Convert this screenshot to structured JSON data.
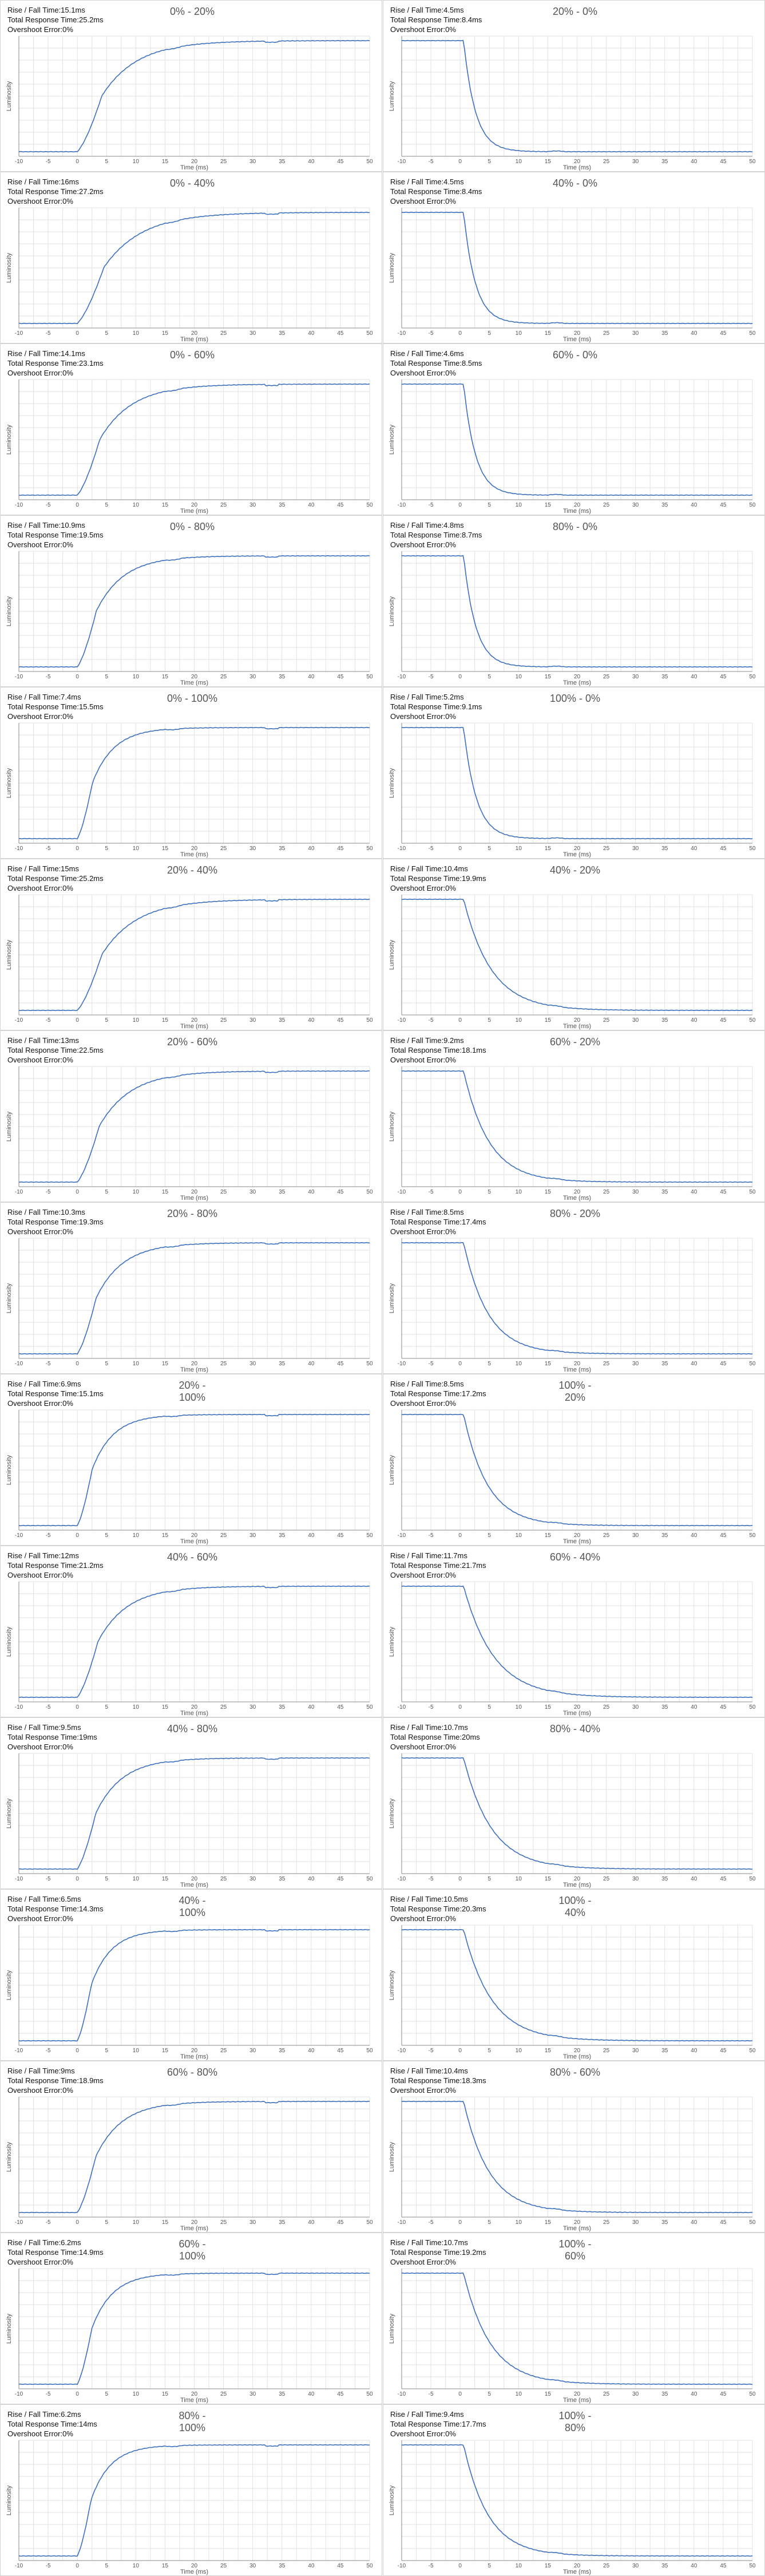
{
  "axis": {
    "xlabel": "Time (ms)",
    "ylabel": "Luminosity",
    "xticks": [
      "-10",
      "-5",
      "0",
      "5",
      "10",
      "15",
      "20",
      "25",
      "30",
      "35",
      "40",
      "45",
      "50"
    ]
  },
  "stat_labels": {
    "rise_fall": "Rise / Fall Time:",
    "total": "Total Response Time:",
    "overshoot": "Overshoot Error:"
  },
  "chart_data": [
    {
      "type": "line",
      "title": "0% - 20%",
      "direction": "rise",
      "from": 0,
      "to": 20,
      "rise_fall": "15.1ms",
      "total": "25.2ms",
      "overshoot": "0%",
      "xlim": [
        -10,
        50
      ]
    },
    {
      "type": "line",
      "title": "20% - 0%",
      "direction": "fall",
      "from": 20,
      "to": 0,
      "rise_fall": "4.5ms",
      "total": "8.4ms",
      "overshoot": "0%",
      "xlim": [
        -10,
        50
      ]
    },
    {
      "type": "line",
      "title": "0% - 40%",
      "direction": "rise",
      "from": 0,
      "to": 40,
      "rise_fall": "16ms",
      "total": "27.2ms",
      "overshoot": "0%",
      "xlim": [
        -10,
        50
      ]
    },
    {
      "type": "line",
      "title": "40% - 0%",
      "direction": "fall",
      "from": 40,
      "to": 0,
      "rise_fall": "4.5ms",
      "total": "8.4ms",
      "overshoot": "0%",
      "xlim": [
        -10,
        50
      ]
    },
    {
      "type": "line",
      "title": "0% - 60%",
      "direction": "rise",
      "from": 0,
      "to": 60,
      "rise_fall": "14.1ms",
      "total": "23.1ms",
      "overshoot": "0%",
      "xlim": [
        -10,
        50
      ]
    },
    {
      "type": "line",
      "title": "60% - 0%",
      "direction": "fall",
      "from": 60,
      "to": 0,
      "rise_fall": "4.6ms",
      "total": "8.5ms",
      "overshoot": "0%",
      "xlim": [
        -10,
        50
      ]
    },
    {
      "type": "line",
      "title": "0% - 80%",
      "direction": "rise",
      "from": 0,
      "to": 80,
      "rise_fall": "10.9ms",
      "total": "19.5ms",
      "overshoot": "0%",
      "xlim": [
        -10,
        50
      ]
    },
    {
      "type": "line",
      "title": "80% - 0%",
      "direction": "fall",
      "from": 80,
      "to": 0,
      "rise_fall": "4.8ms",
      "total": "8.7ms",
      "overshoot": "0%",
      "xlim": [
        -10,
        50
      ]
    },
    {
      "type": "line",
      "title": "0% - 100%",
      "direction": "rise",
      "from": 0,
      "to": 100,
      "rise_fall": "7.4ms",
      "total": "15.5ms",
      "overshoot": "0%",
      "xlim": [
        -10,
        50
      ]
    },
    {
      "type": "line",
      "title": "100% - 0%",
      "direction": "fall",
      "from": 100,
      "to": 0,
      "rise_fall": "5.2ms",
      "total": "9.1ms",
      "overshoot": "0%",
      "xlim": [
        -10,
        50
      ]
    },
    {
      "type": "line",
      "title": "20% - 40%",
      "direction": "rise",
      "from": 20,
      "to": 40,
      "rise_fall": "15ms",
      "total": "25.2ms",
      "overshoot": "0%",
      "xlim": [
        -10,
        50
      ]
    },
    {
      "type": "line",
      "title": "40% - 20%",
      "direction": "fall",
      "from": 40,
      "to": 20,
      "rise_fall": "10.4ms",
      "total": "19.9ms",
      "overshoot": "0%",
      "xlim": [
        -10,
        50
      ]
    },
    {
      "type": "line",
      "title": "20% - 60%",
      "direction": "rise",
      "from": 20,
      "to": 60,
      "rise_fall": "13ms",
      "total": "22.5ms",
      "overshoot": "0%",
      "xlim": [
        -10,
        50
      ]
    },
    {
      "type": "line",
      "title": "60% - 20%",
      "direction": "fall",
      "from": 60,
      "to": 20,
      "rise_fall": "9.2ms",
      "total": "18.1ms",
      "overshoot": "0%",
      "xlim": [
        -10,
        50
      ]
    },
    {
      "type": "line",
      "title": "20% - 80%",
      "direction": "rise",
      "from": 20,
      "to": 80,
      "rise_fall": "10.3ms",
      "total": "19.3ms",
      "overshoot": "0%",
      "xlim": [
        -10,
        50
      ]
    },
    {
      "type": "line",
      "title": "80% - 20%",
      "direction": "fall",
      "from": 80,
      "to": 20,
      "rise_fall": "8.5ms",
      "total": "17.4ms",
      "overshoot": "0%",
      "xlim": [
        -10,
        50
      ]
    },
    {
      "type": "line",
      "title": "20% - 100%",
      "direction": "rise",
      "from": 20,
      "to": 100,
      "rise_fall": "6.9ms",
      "total": "15.1ms",
      "overshoot": "0%",
      "xlim": [
        -10,
        50
      ]
    },
    {
      "type": "line",
      "title": "100% - 20%",
      "direction": "fall",
      "from": 100,
      "to": 20,
      "rise_fall": "8.5ms",
      "total": "17.2ms",
      "overshoot": "0%",
      "xlim": [
        -10,
        50
      ]
    },
    {
      "type": "line",
      "title": "40% - 60%",
      "direction": "rise",
      "from": 40,
      "to": 60,
      "rise_fall": "12ms",
      "total": "21.2ms",
      "overshoot": "0%",
      "xlim": [
        -10,
        50
      ]
    },
    {
      "type": "line",
      "title": "60% - 40%",
      "direction": "fall",
      "from": 60,
      "to": 40,
      "rise_fall": "11.7ms",
      "total": "21.7ms",
      "overshoot": "0%",
      "xlim": [
        -10,
        50
      ]
    },
    {
      "type": "line",
      "title": "40% - 80%",
      "direction": "rise",
      "from": 40,
      "to": 80,
      "rise_fall": "9.5ms",
      "total": "19ms",
      "overshoot": "0%",
      "xlim": [
        -10,
        50
      ]
    },
    {
      "type": "line",
      "title": "80% - 40%",
      "direction": "fall",
      "from": 80,
      "to": 40,
      "rise_fall": "10.7ms",
      "total": "20ms",
      "overshoot": "0%",
      "xlim": [
        -10,
        50
      ]
    },
    {
      "type": "line",
      "title": "40% - 100%",
      "direction": "rise",
      "from": 40,
      "to": 100,
      "rise_fall": "6.5ms",
      "total": "14.3ms",
      "overshoot": "0%",
      "xlim": [
        -10,
        50
      ]
    },
    {
      "type": "line",
      "title": "100% - 40%",
      "direction": "fall",
      "from": 100,
      "to": 40,
      "rise_fall": "10.5ms",
      "total": "20.3ms",
      "overshoot": "0%",
      "xlim": [
        -10,
        50
      ]
    },
    {
      "type": "line",
      "title": "60% - 80%",
      "direction": "rise",
      "from": 60,
      "to": 80,
      "rise_fall": "9ms",
      "total": "18.9ms",
      "overshoot": "0%",
      "xlim": [
        -10,
        50
      ]
    },
    {
      "type": "line",
      "title": "80% - 60%",
      "direction": "fall",
      "from": 80,
      "to": 60,
      "rise_fall": "10.4ms",
      "total": "18.3ms",
      "overshoot": "0%",
      "xlim": [
        -10,
        50
      ]
    },
    {
      "type": "line",
      "title": "60% - 100%",
      "direction": "rise",
      "from": 60,
      "to": 100,
      "rise_fall": "6.2ms",
      "total": "14.9ms",
      "overshoot": "0%",
      "xlim": [
        -10,
        50
      ]
    },
    {
      "type": "line",
      "title": "100% - 60%",
      "direction": "fall",
      "from": 100,
      "to": 60,
      "rise_fall": "10.7ms",
      "total": "19.2ms",
      "overshoot": "0%",
      "xlim": [
        -10,
        50
      ]
    },
    {
      "type": "line",
      "title": "80% - 100%",
      "direction": "rise",
      "from": 80,
      "to": 100,
      "rise_fall": "6.2ms",
      "total": "14ms",
      "overshoot": "0%",
      "xlim": [
        -10,
        50
      ]
    },
    {
      "type": "line",
      "title": "100% - 80%",
      "direction": "fall",
      "from": 100,
      "to": 80,
      "rise_fall": "9.4ms",
      "total": "17.7ms",
      "overshoot": "0%",
      "xlim": [
        -10,
        50
      ]
    }
  ],
  "colors": {
    "line": "#3d6fbd",
    "grid": "#e2e2e2",
    "axis": "#888888",
    "tick_label": "#555555",
    "panel_border": "#d4d4d4"
  }
}
